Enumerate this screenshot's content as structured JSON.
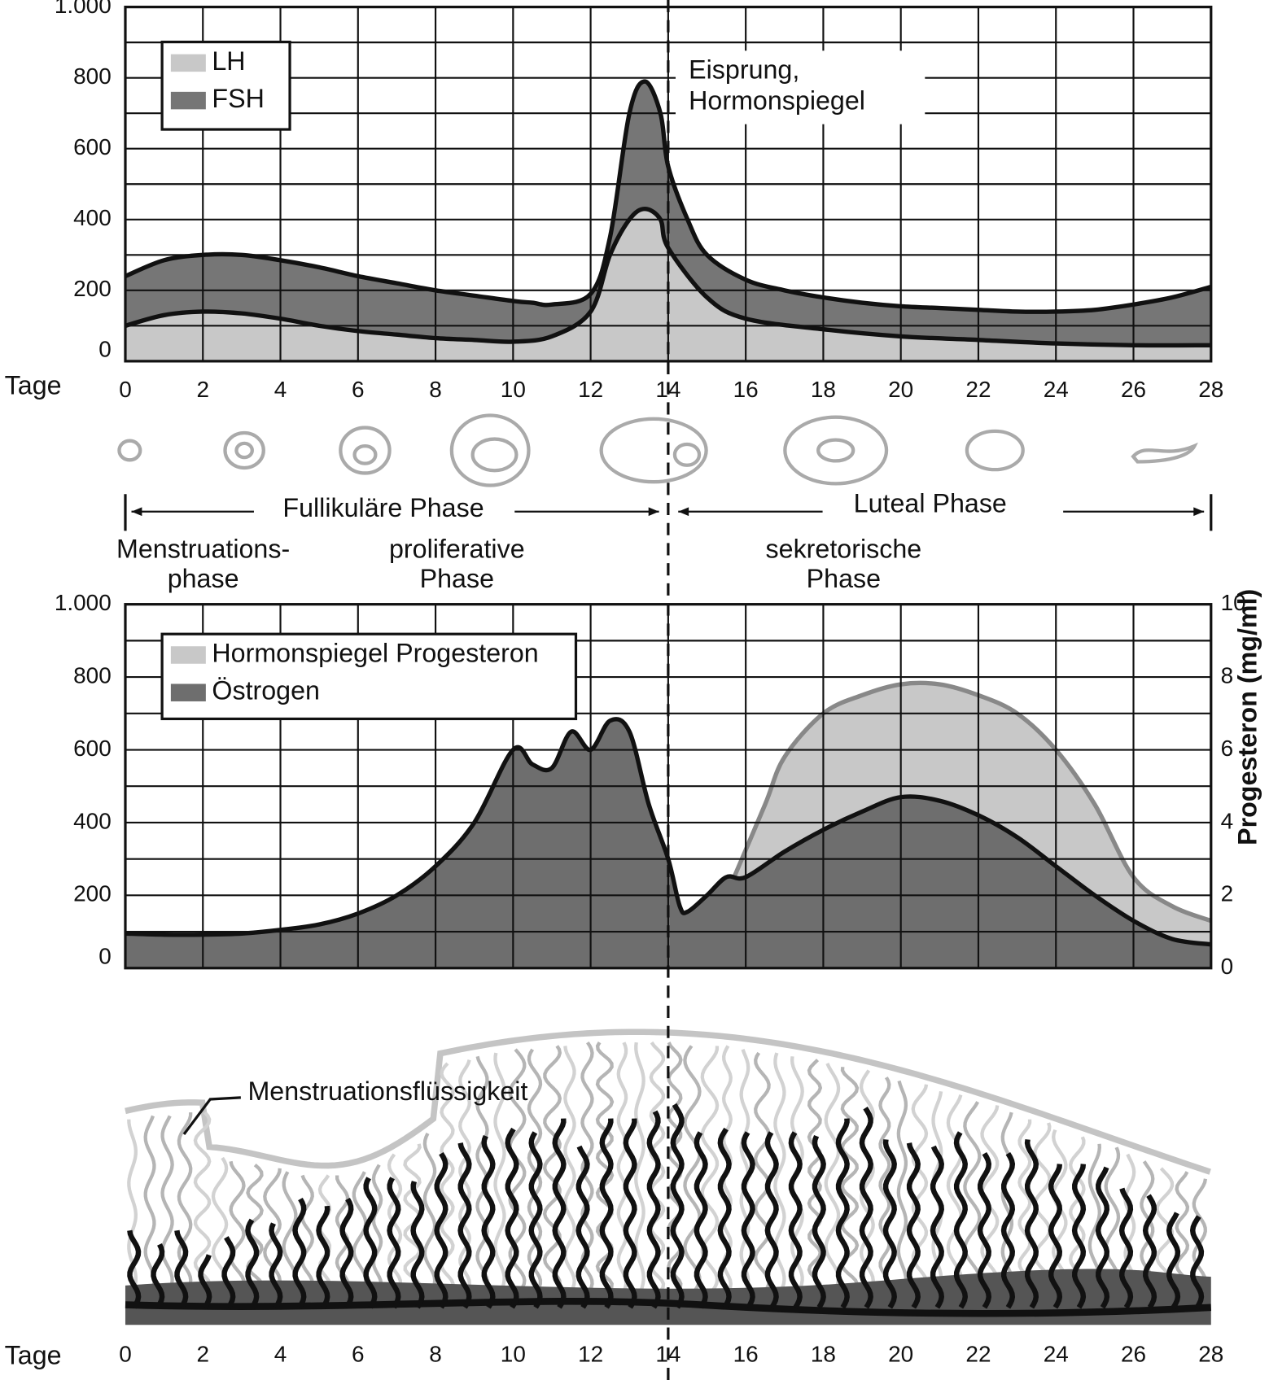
{
  "chart_data": [
    {
      "type": "area",
      "xlabel": "Tage",
      "xlim": [
        0,
        28
      ],
      "xticks": [
        0,
        2,
        4,
        6,
        8,
        10,
        12,
        14,
        16,
        18,
        20,
        22,
        24,
        26,
        28
      ],
      "ylim": [
        0,
        1000
      ],
      "yticks": [
        0,
        200,
        400,
        600,
        800,
        {
          "value": 1000,
          "label": "1.000"
        }
      ],
      "yminorticks": [
        100,
        300,
        500,
        700,
        900
      ],
      "grid": true,
      "legend": "upper left",
      "vline": 14,
      "annotation": [
        "Eisprung,",
        "Hormonspiegel"
      ],
      "series": [
        {
          "name": "FSH",
          "color": "#767676",
          "x": [
            0,
            1,
            2,
            3,
            4,
            5,
            6,
            7,
            8,
            9,
            10,
            10.5,
            11,
            12,
            12.5,
            13,
            13.4,
            13.8,
            14,
            14.5,
            15,
            16,
            17,
            18,
            19,
            20,
            21,
            22,
            23,
            24,
            25,
            26,
            27,
            28
          ],
          "values": [
            240,
            285,
            300,
            300,
            285,
            265,
            240,
            220,
            200,
            185,
            170,
            165,
            160,
            190,
            350,
            700,
            790,
            700,
            550,
            400,
            300,
            230,
            200,
            180,
            165,
            155,
            150,
            145,
            140,
            140,
            145,
            160,
            180,
            210
          ]
        },
        {
          "name": "LH",
          "color": "#c8c8c8",
          "x": [
            0,
            1,
            2,
            3,
            4,
            5,
            6,
            7,
            8,
            9,
            10,
            11,
            12,
            12.5,
            13,
            13.4,
            13.8,
            14,
            15,
            16,
            18,
            20,
            22,
            24,
            26,
            28
          ],
          "values": [
            100,
            130,
            140,
            135,
            120,
            100,
            85,
            75,
            65,
            60,
            55,
            70,
            140,
            300,
            400,
            430,
            400,
            320,
            180,
            120,
            90,
            70,
            60,
            50,
            45,
            45
          ]
        }
      ]
    },
    {
      "type": "area",
      "xlim": [
        0,
        28
      ],
      "xticks": [
        0,
        2,
        4,
        6,
        8,
        10,
        12,
        14,
        16,
        18,
        20,
        22,
        24,
        26,
        28
      ],
      "ylim": [
        0,
        1000
      ],
      "yticks": [
        0,
        200,
        400,
        600,
        800,
        {
          "value": 1000,
          "label": "1.000"
        }
      ],
      "yminorticks": [
        100,
        300,
        500,
        700,
        900
      ],
      "y2lim": [
        0,
        10
      ],
      "y2ticks": [
        0,
        2,
        4,
        6,
        8,
        10
      ],
      "y2label": "Progesteron (mg/ml)",
      "grid": true,
      "legend": "upper left",
      "series": [
        {
          "name": "Hormonspiegel Progesteron",
          "color": "#c8c8c8",
          "axis": "y2",
          "x": [
            15.7,
            16.5,
            17,
            18,
            19,
            20,
            21,
            22,
            23,
            24,
            25,
            26,
            27,
            28
          ],
          "values": [
            2.5,
            4.5,
            5.8,
            7,
            7.5,
            7.8,
            7.8,
            7.5,
            7,
            6,
            4.5,
            2.5,
            1.7,
            1.3
          ]
        },
        {
          "name": "Östrogen",
          "color": "#6e6e6e",
          "x": [
            0,
            1,
            2,
            3,
            4,
            5,
            6,
            7,
            8,
            9,
            10,
            10.5,
            11,
            11.5,
            12,
            12.5,
            13,
            13.5,
            14,
            14.3,
            14.5,
            15,
            15.5,
            16,
            17,
            18,
            19,
            20,
            21,
            22,
            23,
            24,
            25,
            26,
            27,
            28
          ],
          "values": [
            95,
            92,
            92,
            95,
            105,
            120,
            150,
            200,
            280,
            400,
            600,
            560,
            550,
            650,
            600,
            680,
            650,
            450,
            300,
            170,
            155,
            200,
            250,
            250,
            320,
            380,
            430,
            470,
            460,
            420,
            360,
            280,
            200,
            130,
            80,
            65
          ]
        }
      ]
    }
  ],
  "phases": {
    "follicular": "Fullikuläre Phase",
    "luteal": "Luteal Phase",
    "menstrual": [
      "Menstruations-",
      "phase"
    ],
    "proliferative": [
      "proliferative",
      "Phase"
    ],
    "secretory": [
      "sekretorische",
      "Phase"
    ]
  },
  "endometrium": {
    "label": "Menstruationsflüssigkeit",
    "xlabel": "Tage",
    "xticks": [
      0,
      2,
      4,
      6,
      8,
      10,
      12,
      14,
      16,
      18,
      20,
      22,
      24,
      26,
      28
    ]
  }
}
